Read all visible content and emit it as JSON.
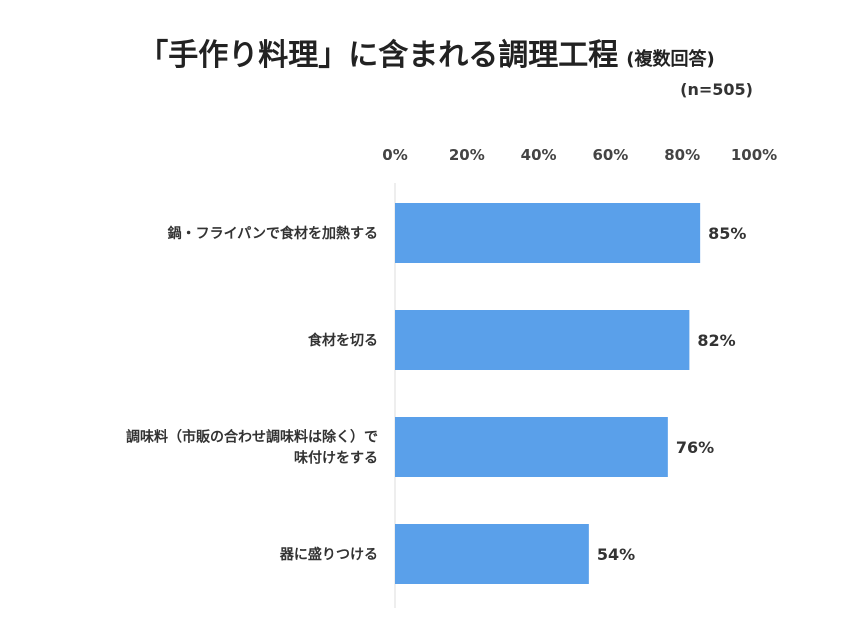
{
  "title": {
    "main": "「手作り料理」に含まれる調理工程",
    "sub": "(複数回答)",
    "n": "(n=505)"
  },
  "colors": {
    "bar": "#5aa0ea",
    "axis": "#dddddd"
  },
  "chart_data": {
    "type": "bar",
    "orientation": "horizontal",
    "title": "「手作り料理」に含まれる調理工程",
    "xlim": [
      0,
      100
    ],
    "ticks": [
      "0%",
      "20%",
      "40%",
      "60%",
      "80%",
      "100%"
    ],
    "tick_values": [
      0,
      20,
      40,
      60,
      80,
      100
    ],
    "categories": [
      [
        "鍋・フライパンで食材を加熱する"
      ],
      [
        "食材を切る"
      ],
      [
        "調味料（市販の合わせ調味料は除く）で",
        "味付けをする"
      ],
      [
        "器に盛りつける"
      ]
    ],
    "values": [
      85,
      82,
      76,
      54
    ],
    "value_labels": [
      "85%",
      "82%",
      "76%",
      "54%"
    ]
  }
}
